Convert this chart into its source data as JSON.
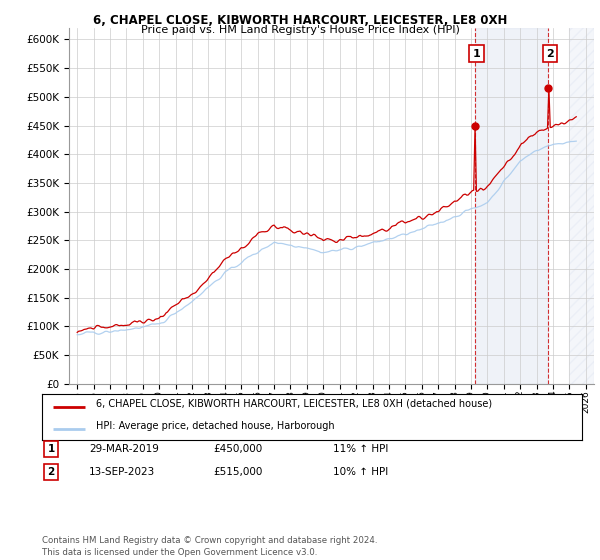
{
  "title1": "6, CHAPEL CLOSE, KIBWORTH HARCOURT, LEICESTER, LE8 0XH",
  "title2": "Price paid vs. HM Land Registry's House Price Index (HPI)",
  "legend_label1": "6, CHAPEL CLOSE, KIBWORTH HARCOURT, LEICESTER, LE8 0XH (detached house)",
  "legend_label2": "HPI: Average price, detached house, Harborough",
  "annotation1_label": "1",
  "annotation1_date": "29-MAR-2019",
  "annotation1_price": "£450,000",
  "annotation1_hpi": "11% ↑ HPI",
  "annotation2_label": "2",
  "annotation2_date": "13-SEP-2023",
  "annotation2_price": "£515,000",
  "annotation2_hpi": "10% ↑ HPI",
  "footnote": "Contains HM Land Registry data © Crown copyright and database right 2024.\nThis data is licensed under the Open Government Licence v3.0.",
  "price_color": "#cc0000",
  "hpi_color": "#aaccee",
  "annotation_color": "#cc0000",
  "sale1_year": 2019.24,
  "sale1_value": 450000,
  "sale2_year": 2023.71,
  "sale2_value": 515000,
  "ylim_min": 0,
  "ylim_max": 620000,
  "xlim_min": 1994.5,
  "xlim_max": 2026.5,
  "background_color": "#ffffff",
  "plot_bg_color": "#ffffff",
  "grid_color": "#cccccc",
  "shaded_region_color": "#ddeeff",
  "hatch_region_start": 2025.0,
  "hatch_region_end": 2026.5,
  "ytick_step": 50000
}
